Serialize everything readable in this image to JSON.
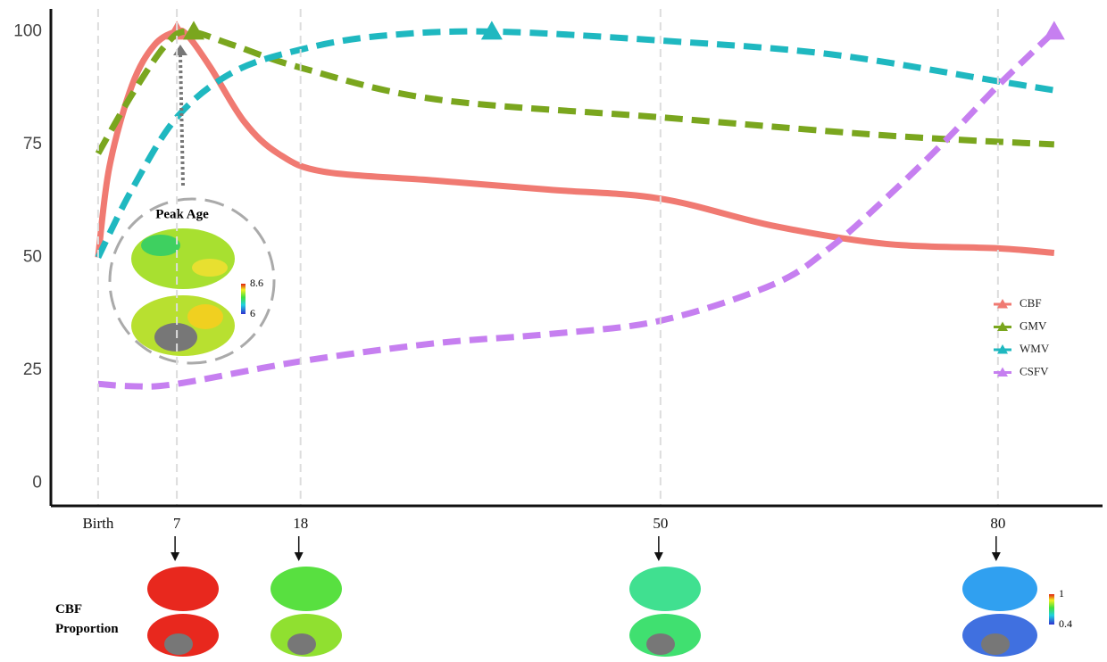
{
  "chart_data": {
    "type": "line",
    "xlim": [
      -4.2,
      89.3
    ],
    "ylim": [
      -5,
      105
    ],
    "xticks": [
      {
        "value": 0,
        "label": "Birth"
      },
      7,
      18,
      50,
      80
    ],
    "yticks": [
      0,
      25,
      50,
      75,
      100
    ],
    "grid": "x",
    "legend": "right",
    "series": [
      {
        "name": "CBF",
        "color": "#f07a72",
        "style": "solid",
        "x": [
          0,
          1,
          3,
          5,
          7,
          8,
          10,
          13,
          16,
          20,
          30,
          40,
          50,
          60,
          70,
          80,
          85
        ],
        "values": [
          50,
          70,
          88,
          97,
          100,
          99,
          92,
          80,
          73,
          69,
          67,
          65,
          63,
          57,
          53,
          52,
          51
        ],
        "peak": [
          7,
          100
        ]
      },
      {
        "name": "GMV",
        "color": "#7aa61e",
        "style": "dashed",
        "x": [
          0,
          3,
          6,
          8,
          12,
          18,
          30,
          50,
          70,
          85
        ],
        "values": [
          73,
          86,
          97,
          100,
          97,
          92,
          85,
          81,
          77,
          75
        ],
        "peak": [
          8.5,
          100
        ]
      },
      {
        "name": "WMV",
        "color": "#1fb8c0",
        "style": "dashed",
        "x": [
          0,
          3,
          7,
          12,
          18,
          25,
          35,
          50,
          65,
          80,
          85
        ],
        "values": [
          50,
          65,
          81,
          91,
          96,
          99,
          100,
          98,
          95,
          89,
          87
        ],
        "peak": [
          35,
          100
        ]
      },
      {
        "name": "CSFV",
        "color": "#c67ff0",
        "style": "dashed",
        "x": [
          0,
          3,
          7,
          18,
          30,
          40,
          50,
          60,
          65,
          70,
          75,
          80,
          85
        ],
        "values": [
          22,
          21.5,
          22,
          27,
          31,
          33,
          36,
          44,
          52,
          63,
          75,
          88,
          100
        ],
        "peak": [
          85,
          100
        ]
      }
    ],
    "inset": {
      "title": "Peak Age",
      "colorbar_ticks": [
        6,
        8.6
      ]
    },
    "proportion": {
      "label": "CBF Proportion",
      "colorbar_ticks": [
        0.4,
        1
      ]
    }
  }
}
